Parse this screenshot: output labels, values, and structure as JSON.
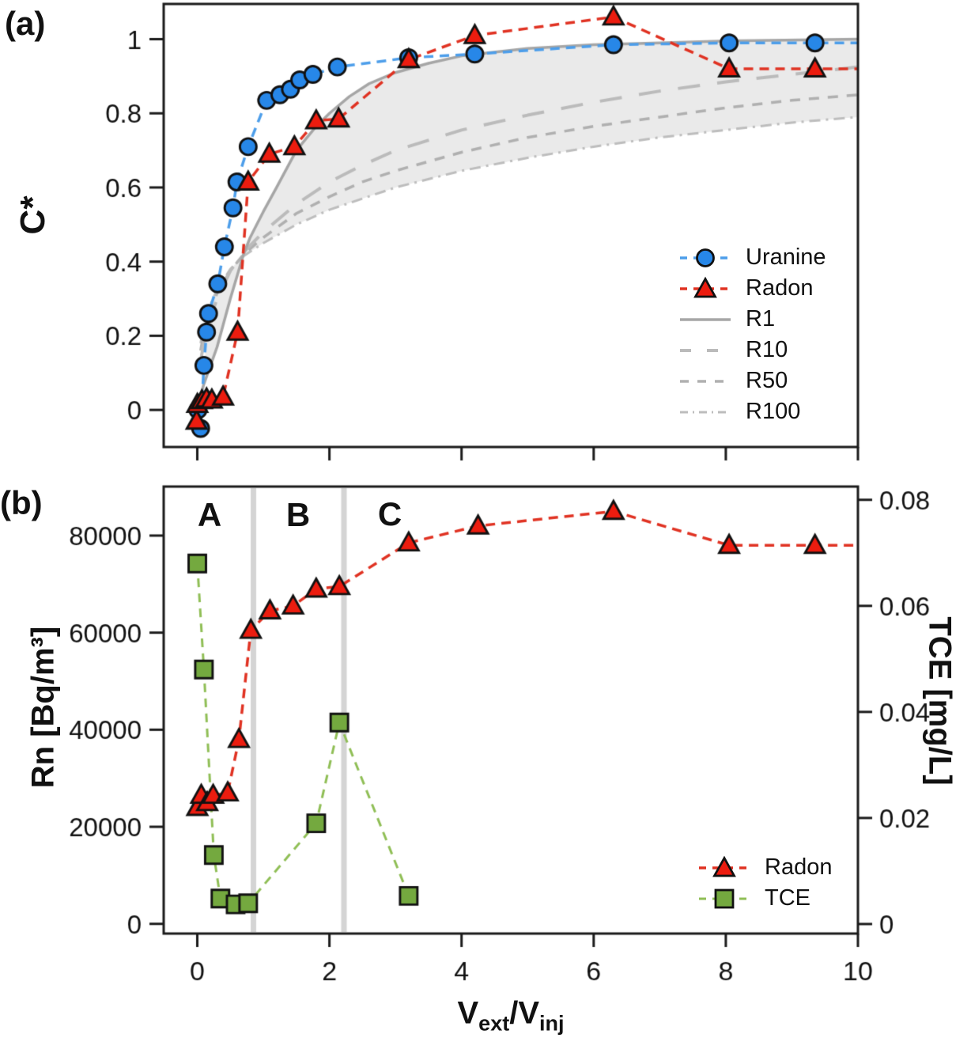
{
  "figure": {
    "panel_a_tag": "(a)",
    "panel_b_tag": "(b)",
    "background": "#ffffff",
    "frame_color": "#1a1a1a"
  },
  "chart_data": [
    {
      "id": "panel-a",
      "type": "scatter-line",
      "ylabel": "C*",
      "xlim": [
        -0.509,
        10
      ],
      "ylim": [
        -0.1,
        1.095
      ],
      "xticks": [
        0,
        2,
        4,
        6,
        8,
        10
      ],
      "xtick_labels": [
        "",
        "",
        "",
        "",
        "",
        ""
      ],
      "yticks": [
        0,
        0.2,
        0.4,
        0.6,
        0.8,
        1
      ],
      "ytick_labels": [
        "0",
        "0.2",
        "0.4",
        "0.6",
        "0.8",
        "1"
      ],
      "grid": false,
      "legend_position": "lower right",
      "band": {
        "color": "#EAEAEA",
        "x_start": 0.12,
        "between_curves": [
          "R1",
          "R10",
          "R50",
          "R100"
        ]
      },
      "series": [
        {
          "name": "Uranine",
          "marker": "circle",
          "color": "#2787E8",
          "line_color": "#4D9EEA",
          "dash": [
            12,
            8
          ],
          "legend_dash": [
            9,
            8
          ],
          "line_width": 3.5,
          "extend_to_x": 10.2,
          "draw_order": 5,
          "points": [
            [
              0.01,
              0.0
            ],
            [
              0.05,
              -0.05
            ],
            [
              0.1,
              0.12
            ],
            [
              0.14,
              0.21
            ],
            [
              0.17,
              0.26
            ],
            [
              0.31,
              0.34
            ],
            [
              0.41,
              0.44
            ],
            [
              0.54,
              0.545
            ],
            [
              0.6,
              0.615
            ],
            [
              0.77,
              0.71
            ],
            [
              1.05,
              0.835
            ],
            [
              1.25,
              0.85
            ],
            [
              1.41,
              0.865
            ],
            [
              1.55,
              0.89
            ],
            [
              1.75,
              0.905
            ],
            [
              2.12,
              0.925
            ],
            [
              3.2,
              0.95
            ],
            [
              4.2,
              0.96
            ],
            [
              6.3,
              0.985
            ],
            [
              8.05,
              0.99
            ],
            [
              9.35,
              0.99
            ]
          ]
        },
        {
          "name": "Radon",
          "marker": "triangle",
          "color": "#EC1C0F",
          "line_color": "#E03222",
          "dash": [
            12,
            8
          ],
          "legend_dash": [
            9,
            8
          ],
          "line_width": 3.5,
          "extend_to_x": 10.2,
          "draw_order": 6,
          "points": [
            [
              -0.01,
              -0.03
            ],
            [
              0.0,
              0.015
            ],
            [
              0.07,
              0.025
            ],
            [
              0.14,
              0.03
            ],
            [
              0.22,
              0.027
            ],
            [
              0.39,
              0.035
            ],
            [
              0.61,
              0.21
            ],
            [
              0.77,
              0.615
            ],
            [
              1.09,
              0.69
            ],
            [
              1.47,
              0.71
            ],
            [
              1.8,
              0.78
            ],
            [
              2.14,
              0.785
            ],
            [
              3.2,
              0.945
            ],
            [
              4.2,
              1.01
            ],
            [
              6.3,
              1.06
            ],
            [
              8.05,
              0.92
            ],
            [
              9.35,
              0.92
            ]
          ]
        },
        {
          "name": "R1",
          "model": true,
          "color": "#A6A6A6",
          "dash": [],
          "legend_dash": [],
          "line_width": 3.5,
          "draw_order": 4,
          "points": [
            [
              0.02,
              0.02
            ],
            [
              0.1,
              0.07
            ],
            [
              0.2,
              0.12
            ],
            [
              0.3,
              0.17
            ],
            [
              0.4,
              0.235
            ],
            [
              0.5,
              0.3
            ],
            [
              0.6,
              0.36
            ],
            [
              0.7,
              0.42
            ],
            [
              0.8,
              0.465
            ],
            [
              0.9,
              0.5
            ],
            [
              1.0,
              0.535
            ],
            [
              1.2,
              0.6
            ],
            [
              1.5,
              0.7
            ],
            [
              1.8,
              0.765
            ],
            [
              2.0,
              0.8
            ],
            [
              2.3,
              0.845
            ],
            [
              2.6,
              0.88
            ],
            [
              3.0,
              0.91
            ],
            [
              3.5,
              0.935
            ],
            [
              4.0,
              0.955
            ],
            [
              5.0,
              0.975
            ],
            [
              6.0,
              0.985
            ],
            [
              7.0,
              0.99
            ],
            [
              8.0,
              0.995
            ],
            [
              10.0,
              1.0
            ]
          ]
        },
        {
          "name": "R10",
          "model": true,
          "color": "#BBBBBB",
          "dash": [
            28,
            22
          ],
          "legend_dash": [
            14,
            20
          ],
          "line_width": 4,
          "draw_order": 3,
          "points": [
            [
              0.05,
              0.13
            ],
            [
              0.1,
              0.185
            ],
            [
              0.2,
              0.25
            ],
            [
              0.3,
              0.3
            ],
            [
              0.5,
              0.375
            ],
            [
              0.7,
              0.425
            ],
            [
              1.0,
              0.48
            ],
            [
              1.5,
              0.555
            ],
            [
              2.0,
              0.615
            ],
            [
              2.5,
              0.66
            ],
            [
              3.0,
              0.7
            ],
            [
              4.0,
              0.755
            ],
            [
              5.0,
              0.795
            ],
            [
              6.0,
              0.83
            ],
            [
              7.0,
              0.86
            ],
            [
              8.0,
              0.885
            ],
            [
              9.0,
              0.905
            ],
            [
              10.0,
              0.925
            ]
          ]
        },
        {
          "name": "R50",
          "model": true,
          "color": "#B0B0B0",
          "dash": [
            13,
            11
          ],
          "legend_dash": [
            11,
            11
          ],
          "line_width": 3.5,
          "draw_order": 2,
          "points": [
            [
              0.05,
              0.16
            ],
            [
              0.1,
              0.21
            ],
            [
              0.2,
              0.27
            ],
            [
              0.3,
              0.315
            ],
            [
              0.5,
              0.375
            ],
            [
              0.7,
              0.42
            ],
            [
              1.0,
              0.465
            ],
            [
              1.5,
              0.53
            ],
            [
              2.0,
              0.575
            ],
            [
              2.5,
              0.615
            ],
            [
              3.0,
              0.645
            ],
            [
              4.0,
              0.695
            ],
            [
              5.0,
              0.735
            ],
            [
              6.0,
              0.765
            ],
            [
              7.0,
              0.79
            ],
            [
              8.0,
              0.815
            ],
            [
              9.0,
              0.835
            ],
            [
              10.0,
              0.85
            ]
          ]
        },
        {
          "name": "R100",
          "model": true,
          "color": "#BDBDBD",
          "dash": [
            14,
            7,
            3,
            7
          ],
          "legend_dash": [
            10,
            6,
            2,
            6
          ],
          "line_width": 3,
          "draw_order": 1,
          "points": [
            [
              0.05,
              0.18
            ],
            [
              0.1,
              0.23
            ],
            [
              0.2,
              0.285
            ],
            [
              0.3,
              0.325
            ],
            [
              0.5,
              0.38
            ],
            [
              0.7,
              0.415
            ],
            [
              1.0,
              0.45
            ],
            [
              1.5,
              0.5
            ],
            [
              2.0,
              0.54
            ],
            [
              2.5,
              0.57
            ],
            [
              3.0,
              0.6
            ],
            [
              4.0,
              0.645
            ],
            [
              5.0,
              0.68
            ],
            [
              6.0,
              0.71
            ],
            [
              7.0,
              0.735
            ],
            [
              8.0,
              0.755
            ],
            [
              9.0,
              0.775
            ],
            [
              10.0,
              0.79
            ]
          ]
        }
      ]
    },
    {
      "id": "panel-b",
      "type": "scatter-line",
      "ylabel_left": "Rn [Bq/m³]",
      "ylabel_right": "TCE [mg/L]",
      "xlabel": "V_ext/V_inj",
      "xlabel_parts": {
        "v1": "V",
        "sub1": "ext",
        "v2": "/V",
        "sub2": "inj"
      },
      "xlim": [
        -0.509,
        10
      ],
      "ylim_left": [
        -2000,
        90100
      ],
      "ylim_right": [
        -0.0018,
        0.0825
      ],
      "xticks": [
        0,
        2,
        4,
        6,
        8,
        10
      ],
      "xtick_labels": [
        "0",
        "2",
        "4",
        "6",
        "8",
        "10"
      ],
      "yticks_left": [
        0,
        20000,
        40000,
        60000,
        80000
      ],
      "ytick_labels_left": [
        "0",
        "20000",
        "40000",
        "60000",
        "80000"
      ],
      "yticks_right": [
        0,
        0.02,
        0.04,
        0.06,
        0.08
      ],
      "ytick_labels_right": [
        "0",
        "0.02",
        "0.04",
        "0.06",
        "0.08"
      ],
      "grid": false,
      "legend_position": "lower right",
      "zone_labels": [
        "A",
        "B",
        "C"
      ],
      "zone_label_x": [
        0.18,
        1.51,
        2.9
      ],
      "zone_lines_x": [
        0.85,
        2.22
      ],
      "zone_line_color": "#D4D4D4",
      "series": [
        {
          "name": "Radon",
          "axis": "left",
          "marker": "triangle",
          "color": "#EC1C0F",
          "line_color": "#E03222",
          "dash": [
            12,
            8
          ],
          "legend_dash": [
            9,
            8
          ],
          "line_width": 3.5,
          "extend_to_x": 10.2,
          "draw_order": 2,
          "points": [
            [
              0.0,
              24000
            ],
            [
              0.06,
              26500
            ],
            [
              0.15,
              25000
            ],
            [
              0.24,
              26500
            ],
            [
              0.46,
              27000
            ],
            [
              0.63,
              38000
            ],
            [
              0.81,
              60500
            ],
            [
              1.1,
              64500
            ],
            [
              1.45,
              65500
            ],
            [
              1.8,
              69000
            ],
            [
              2.15,
              69500
            ],
            [
              3.2,
              78500
            ],
            [
              4.25,
              82000
            ],
            [
              6.3,
              85000
            ],
            [
              8.05,
              78000
            ],
            [
              9.35,
              78000
            ]
          ]
        },
        {
          "name": "TCE",
          "axis": "right",
          "marker": "square",
          "color": "#74A93F",
          "line_color": "#8FBE55",
          "dash": [
            11,
            8
          ],
          "legend_dash": [
            9,
            8
          ],
          "line_width": 3,
          "draw_order": 1,
          "points": [
            [
              0.0,
              0.068
            ],
            [
              0.1,
              0.048
            ],
            [
              0.25,
              0.013
            ],
            [
              0.35,
              0.0048
            ],
            [
              0.58,
              0.0037
            ],
            [
              0.77,
              0.0039
            ],
            [
              1.8,
              0.019
            ],
            [
              2.15,
              0.038
            ],
            [
              3.2,
              0.0053
            ]
          ]
        }
      ]
    }
  ]
}
